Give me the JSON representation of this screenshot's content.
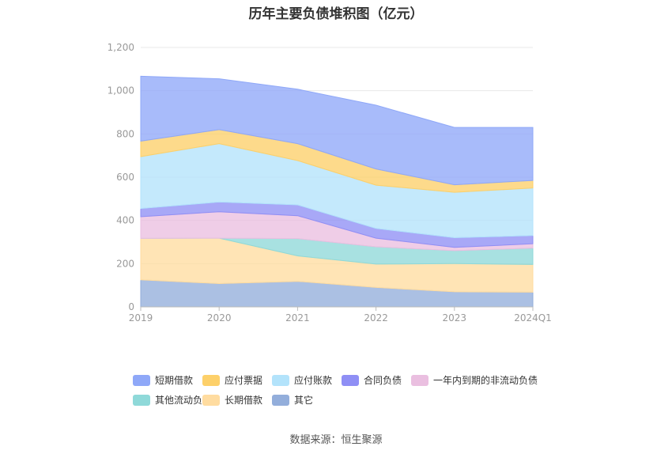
{
  "chart_data": {
    "type": "area",
    "stacked": true,
    "title": "历年主要负债堆积图（亿元）",
    "categories": [
      "2019",
      "2020",
      "2021",
      "2022",
      "2023",
      "2024Q1"
    ],
    "ylim": [
      0,
      1200
    ],
    "yticks": [
      "0",
      "200",
      "400",
      "600",
      "800",
      "1,000",
      "1,200"
    ],
    "grid": true,
    "legend_position": "bottom",
    "series": [
      {
        "name": "其它",
        "color": "#93aedb",
        "values": [
          125,
          108,
          118,
          90,
          70,
          68
        ]
      },
      {
        "name": "长期借款",
        "color": "#ffdca0",
        "values": [
          192,
          210,
          118,
          108,
          130,
          128
        ]
      },
      {
        "name": "其他流动负债",
        "color": "#8fd9d9",
        "values": [
          0,
          0,
          80,
          80,
          60,
          76
        ]
      },
      {
        "name": "一年内到期的非流动负债",
        "color": "#eabfe0",
        "values": [
          100,
          122,
          106,
          40,
          15,
          20
        ]
      },
      {
        "name": "合同负债",
        "color": "#8f8ff5",
        "values": [
          38,
          45,
          50,
          45,
          45,
          38
        ]
      },
      {
        "name": "应付账款",
        "color": "#b3e3fb",
        "values": [
          240,
          270,
          205,
          200,
          210,
          220
        ]
      },
      {
        "name": "应付票据",
        "color": "#fdd06a",
        "values": [
          72,
          65,
          78,
          75,
          35,
          35
        ]
      },
      {
        "name": "短期借款",
        "color": "#8fa8f8",
        "values": [
          300,
          235,
          252,
          295,
          265,
          245
        ]
      }
    ],
    "legend_order": [
      "短期借款",
      "应付票据",
      "应付账款",
      "合同负债",
      "一年内到期的非流动负债",
      "其他流动负债",
      "长期借款",
      "其它"
    ]
  },
  "source": "数据来源：恒生聚源"
}
